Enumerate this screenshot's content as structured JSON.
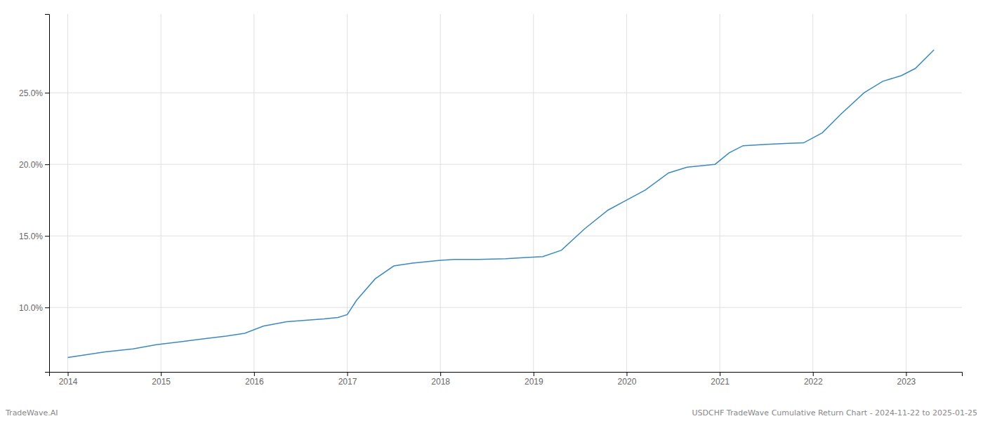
{
  "chart_data": {
    "type": "line",
    "annotations": [
      "TradeWave.AI",
      "USDCHF TradeWave Cumulative Return Chart - 2024-11-22 to 2025-01-25"
    ],
    "x": [
      2014.0,
      2014.15,
      2014.4,
      2014.7,
      2014.95,
      2015.2,
      2015.45,
      2015.7,
      2015.9,
      2016.1,
      2016.35,
      2016.55,
      2016.75,
      2016.9,
      2017.0,
      2017.1,
      2017.3,
      2017.5,
      2017.7,
      2017.85,
      2018.0,
      2018.15,
      2018.4,
      2018.7,
      2018.95,
      2019.1,
      2019.3,
      2019.55,
      2019.8,
      2020.0,
      2020.2,
      2020.45,
      2020.65,
      2020.8,
      2020.95,
      2021.1,
      2021.25,
      2021.5,
      2021.7,
      2021.9,
      2022.1,
      2022.3,
      2022.55,
      2022.75,
      2022.95,
      2023.1,
      2023.3
    ],
    "values": [
      6.5,
      6.65,
      6.9,
      7.1,
      7.4,
      7.6,
      7.8,
      8.0,
      8.2,
      8.7,
      9.0,
      9.1,
      9.2,
      9.3,
      9.5,
      10.5,
      12.0,
      12.9,
      13.1,
      13.2,
      13.3,
      13.35,
      13.35,
      13.4,
      13.5,
      13.55,
      14.0,
      15.5,
      16.8,
      17.5,
      18.2,
      19.4,
      19.8,
      19.9,
      20.0,
      20.8,
      21.3,
      21.4,
      21.45,
      21.5,
      22.2,
      23.5,
      25.0,
      25.8,
      26.2,
      26.7,
      28.0
    ],
    "color": "#3a8abf",
    "xlim": [
      2013.8,
      2023.6
    ],
    "ylim": [
      5.5,
      30.5
    ],
    "xticks": [
      2014,
      2015,
      2016,
      2017,
      2018,
      2019,
      2020,
      2021,
      2022,
      2023
    ],
    "yticks": [
      {
        "value": 10.0,
        "label": "10.0%"
      },
      {
        "value": 15.0,
        "label": "15.0%"
      },
      {
        "value": 20.0,
        "label": "20.0%"
      },
      {
        "value": 25.0,
        "label": "25.0%"
      }
    ],
    "grid": true
  }
}
